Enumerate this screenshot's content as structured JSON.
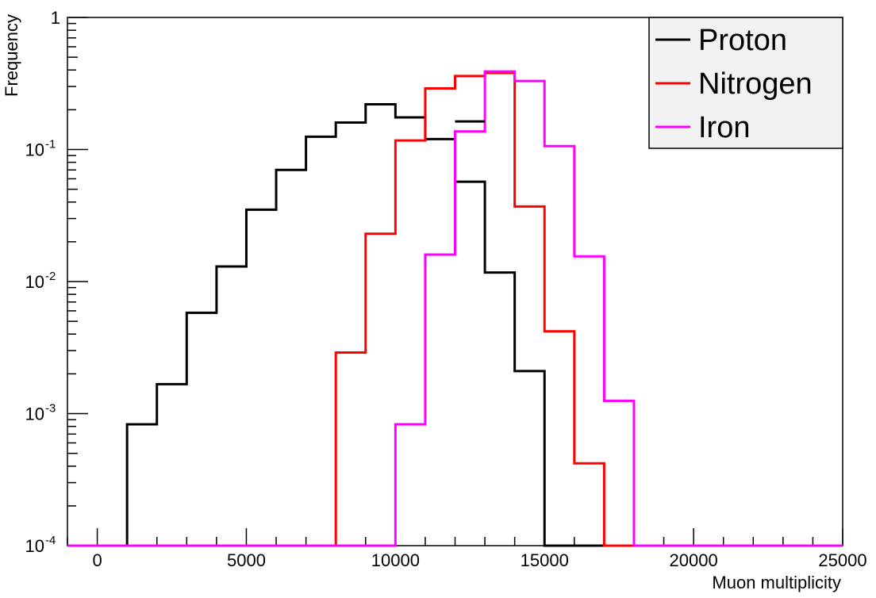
{
  "chart_data": {
    "type": "histogram",
    "xlabel": "Muon multiplicity",
    "ylabel": "Frequency",
    "xlim": [
      -1000,
      25000
    ],
    "ylim": [
      0.0001,
      1
    ],
    "yscale": "log",
    "bin_width": 1000,
    "x_ticks": [
      0,
      5000,
      10000,
      15000,
      20000,
      25000
    ],
    "y_ticks": [
      {
        "value": 1,
        "base": "1",
        "exp": ""
      },
      {
        "value": 0.1,
        "base": "10",
        "exp": "-1"
      },
      {
        "value": 0.01,
        "base": "10",
        "exp": "-2"
      },
      {
        "value": 0.001,
        "base": "10",
        "exp": "-3"
      },
      {
        "value": 0.0001,
        "base": "10",
        "exp": "-4"
      }
    ],
    "legend_position": "top-right",
    "series": [
      {
        "name": "Proton",
        "color": "#000000",
        "bins": [
          {
            "x": 1000,
            "y": 0.00083
          },
          {
            "x": 2000,
            "y": 0.00167
          },
          {
            "x": 3000,
            "y": 0.0058
          },
          {
            "x": 4000,
            "y": 0.013
          },
          {
            "x": 5000,
            "y": 0.035
          },
          {
            "x": 6000,
            "y": 0.07
          },
          {
            "x": 7000,
            "y": 0.125
          },
          {
            "x": 8000,
            "y": 0.16
          },
          {
            "x": 9000,
            "y": 0.22
          },
          {
            "x": 10000,
            "y": 0.175
          },
          {
            "x": 11000,
            "y": 0.12
          },
          {
            "x": 12000,
            "y": 0.057
          },
          {
            "x": 13000,
            "y": 0.0117
          },
          {
            "x": 14000,
            "y": 0.0021
          }
        ]
      },
      {
        "name": "Nitrogen",
        "color": "#ff0000",
        "bins": [
          {
            "x": 8000,
            "y": 0.0029
          },
          {
            "x": 9000,
            "y": 0.023
          },
          {
            "x": 10000,
            "y": 0.117
          },
          {
            "x": 11000,
            "y": 0.29
          },
          {
            "x": 12000,
            "y": 0.36
          },
          {
            "x": 13000,
            "y": 0.38
          },
          {
            "x": 14000,
            "y": 0.037
          },
          {
            "x": 15000,
            "y": 0.0042
          },
          {
            "x": 16000,
            "y": 0.00042
          }
        ]
      },
      {
        "name": "Iron",
        "color": "#ff00ff",
        "bins": [
          {
            "x": 10000,
            "y": 0.00083
          },
          {
            "x": 11000,
            "y": 0.016
          },
          {
            "x": 12000,
            "y": 0.137
          },
          {
            "x": 13000,
            "y": 0.39
          },
          {
            "x": 14000,
            "y": 0.33
          },
          {
            "x": 15000,
            "y": 0.106
          },
          {
            "x": 16000,
            "y": 0.0155
          },
          {
            "x": 17000,
            "y": 0.00125
          }
        ]
      }
    ],
    "overlays": [
      {
        "series": "Proton",
        "from": 12000,
        "to": 13000,
        "y": 0.163
      }
    ]
  }
}
